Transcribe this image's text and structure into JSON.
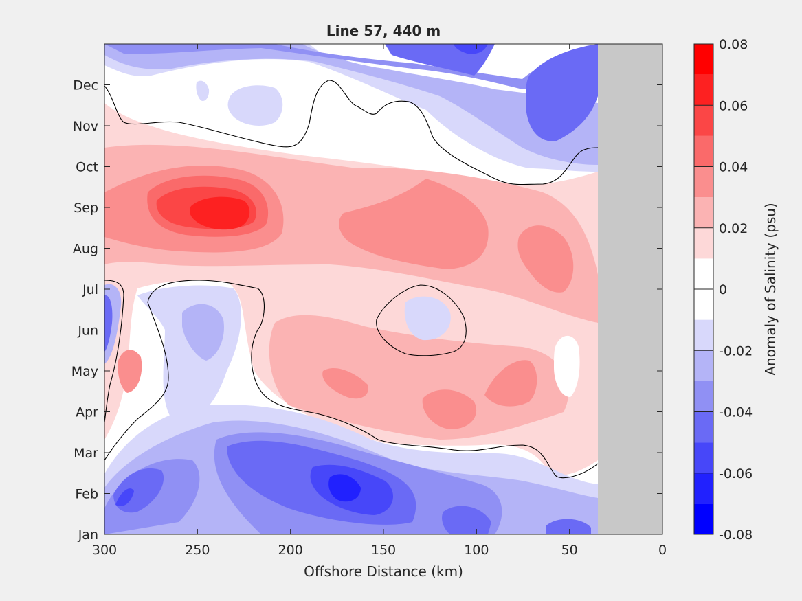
{
  "chart_data": {
    "type": "heatmap",
    "title": "Line 57, 440 m",
    "xlabel": "Offshore Distance (km)",
    "ylabel": "",
    "xlim": [
      300,
      0
    ],
    "x_reversed": true,
    "x_ticks": [
      "300",
      "250",
      "200",
      "150",
      "100",
      "50",
      "0"
    ],
    "y_ticks": [
      "Jan",
      "Feb",
      "Mar",
      "Apr",
      "May",
      "Jun",
      "Jul",
      "Aug",
      "Sep",
      "Oct",
      "Nov",
      "Dec"
    ],
    "colorbar": {
      "label": "Anomaly of Salinity (psu)",
      "range": [
        -0.08,
        0.08
      ],
      "tick_labels": [
        "0.08",
        "0.06",
        "0.04",
        "0.02",
        "0",
        "-0.02",
        "-0.04",
        "-0.06",
        "-0.08"
      ],
      "levels": [
        {
          "from": -0.08,
          "to": -0.07,
          "color": "#0000ff"
        },
        {
          "from": -0.07,
          "to": -0.06,
          "color": "#2121fe"
        },
        {
          "from": -0.06,
          "to": -0.05,
          "color": "#4747f9"
        },
        {
          "from": -0.05,
          "to": -0.04,
          "color": "#6a6af5"
        },
        {
          "from": -0.04,
          "to": -0.03,
          "color": "#9090f4"
        },
        {
          "from": -0.03,
          "to": -0.02,
          "color": "#b4b4f7"
        },
        {
          "from": -0.02,
          "to": -0.01,
          "color": "#d8d8fb"
        },
        {
          "from": -0.01,
          "to": 0.0,
          "color": "#ffffff"
        },
        {
          "from": 0.0,
          "to": 0.01,
          "color": "#ffffff"
        },
        {
          "from": 0.01,
          "to": 0.02,
          "color": "#fdd8d8"
        },
        {
          "from": 0.02,
          "to": 0.03,
          "color": "#fbb3b3"
        },
        {
          "from": 0.03,
          "to": 0.04,
          "color": "#fa8e8e"
        },
        {
          "from": 0.04,
          "to": 0.05,
          "color": "#fa6a6a"
        },
        {
          "from": 0.05,
          "to": 0.06,
          "color": "#fb4646"
        },
        {
          "from": 0.06,
          "to": 0.07,
          "color": "#fd2121"
        },
        {
          "from": 0.07,
          "to": 0.08,
          "color": "#ff0000"
        }
      ]
    },
    "no_data_region": {
      "x_from": 35,
      "x_to": 0,
      "color": "#c8c8c8"
    },
    "zero_contour": "black line at 0",
    "grid": false,
    "anomaly_features": [
      {
        "x": 240,
        "month": "Sep",
        "value": 0.065
      },
      {
        "x": 250,
        "month": "Sep",
        "value": 0.05
      },
      {
        "x": 125,
        "month": "Aug",
        "value": 0.035
      },
      {
        "x": 160,
        "month": "Aug",
        "value": 0.03
      },
      {
        "x": 70,
        "month": "Aug",
        "value": 0.035
      },
      {
        "x": 120,
        "month": "Apr",
        "value": 0.035
      },
      {
        "x": 165,
        "month": "May",
        "value": 0.035
      },
      {
        "x": 80,
        "month": "May",
        "value": 0.035
      },
      {
        "x": 285,
        "month": "May",
        "value": 0.035
      },
      {
        "x": 165,
        "month": "Feb",
        "value": -0.065
      },
      {
        "x": 200,
        "month": "Feb",
        "value": -0.055
      },
      {
        "x": 110,
        "month": "Feb",
        "value": -0.05
      },
      {
        "x": 280,
        "month": "Feb",
        "value": -0.05
      },
      {
        "x": 65,
        "month": "Nov",
        "value": -0.045
      },
      {
        "x": 105,
        "month": "Dec",
        "value": -0.04
      },
      {
        "x": 260,
        "month": "Jun",
        "value": -0.03
      },
      {
        "x": 128,
        "month": "Jun",
        "value": -0.015
      },
      {
        "x": 195,
        "month": "Dec",
        "value": -0.015
      },
      {
        "x": 42,
        "month": "May",
        "value": 0.005
      }
    ]
  }
}
